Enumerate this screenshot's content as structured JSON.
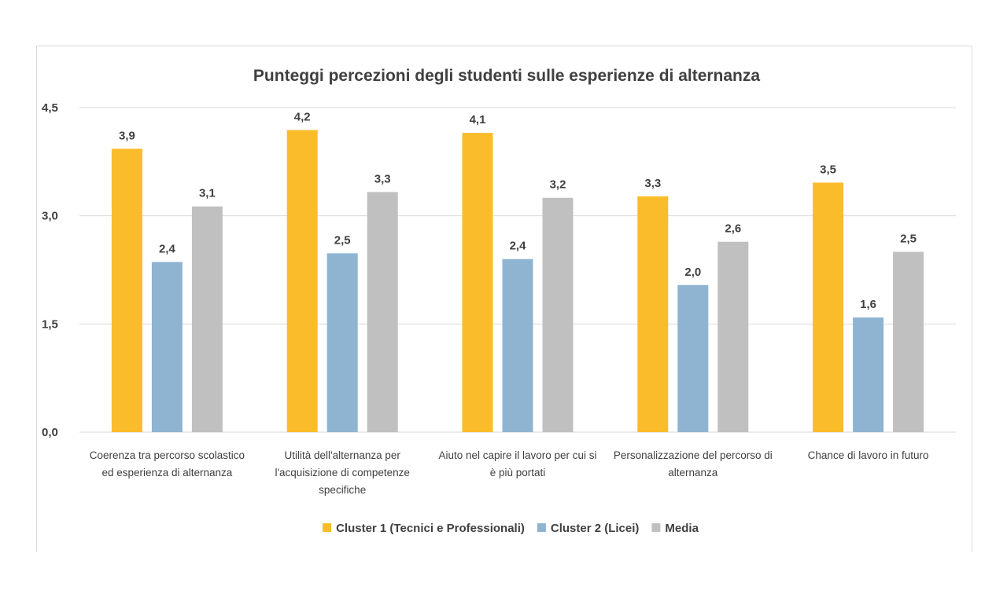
{
  "chart_data": {
    "type": "bar",
    "title": "Punteggi percezioni degli studenti sulle esperienze di alternanza",
    "categories": [
      [
        "Coerenza tra percorso scolastico",
        "ed esperienza di alternanza"
      ],
      [
        "Utilità dell'alternanza per",
        "l'acquisizione di competenze",
        "specifiche"
      ],
      [
        "Aiuto nel capire il lavoro per cui si",
        "è più portati"
      ],
      [
        "Personalizzazione del percorso di",
        "alternanza"
      ],
      [
        "Chance di lavoro in futuro"
      ]
    ],
    "series": [
      {
        "name": "Cluster 1 (Tecnici e Professionali)",
        "color": "#fbbc2c",
        "values": [
          3.93,
          4.19,
          4.15,
          3.27,
          3.46
        ],
        "labels": [
          "3,9",
          "4,2",
          "4,1",
          "3,3",
          "3,5"
        ]
      },
      {
        "name": "Cluster 2 (Licei)",
        "color": "#8fb4d2",
        "values": [
          2.36,
          2.48,
          2.4,
          2.04,
          1.59
        ],
        "labels": [
          "2,4",
          "2,5",
          "2,4",
          "2,0",
          "1,6"
        ]
      },
      {
        "name": "Media",
        "color": "#c0c0c0",
        "values": [
          3.13,
          3.33,
          3.25,
          2.64,
          2.5
        ],
        "labels": [
          "3,1",
          "3,3",
          "3,2",
          "2,6",
          "2,5"
        ]
      }
    ],
    "yticks": [
      0,
      1.5,
      3.0,
      4.5
    ],
    "ytick_labels": [
      "0,0",
      "1,5",
      "3,0",
      "4,5"
    ],
    "ylim": [
      0,
      4.5
    ],
    "grid": true,
    "legend_position": "bottom"
  }
}
